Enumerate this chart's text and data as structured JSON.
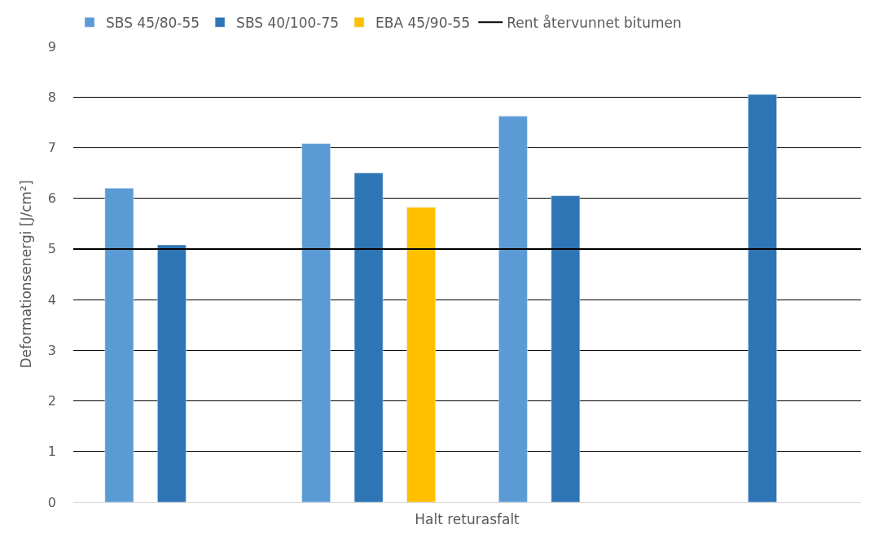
{
  "chart_data": {
    "type": "bar",
    "xlabel": "Halt returasfalt",
    "ylabel": "Deformationsenergi [J/cm²]",
    "categories": [
      null,
      null,
      null,
      null
    ],
    "series": [
      {
        "name": "SBS 45/80-55",
        "color": "#5b9bd5",
        "values": [
          6.2,
          7.08,
          7.62,
          null
        ]
      },
      {
        "name": "SBS 40/100-75",
        "color": "#2e75b6",
        "values": [
          5.08,
          6.5,
          6.05,
          8.05
        ]
      },
      {
        "name": "EBA 45/90-55",
        "color": "#ffc000",
        "values": [
          null,
          5.82,
          null,
          null
        ]
      }
    ],
    "ref_lines": [
      {
        "axis": "y",
        "value": 5,
        "label": "Rent återvunnet bitumen",
        "color": "#000000"
      }
    ],
    "ylim": [
      0,
      9
    ],
    "yticks": [
      0,
      1,
      2,
      3,
      4,
      5,
      6,
      7,
      8,
      9
    ],
    "grid": "y",
    "legend": "top left",
    "tick_labels": "y"
  }
}
